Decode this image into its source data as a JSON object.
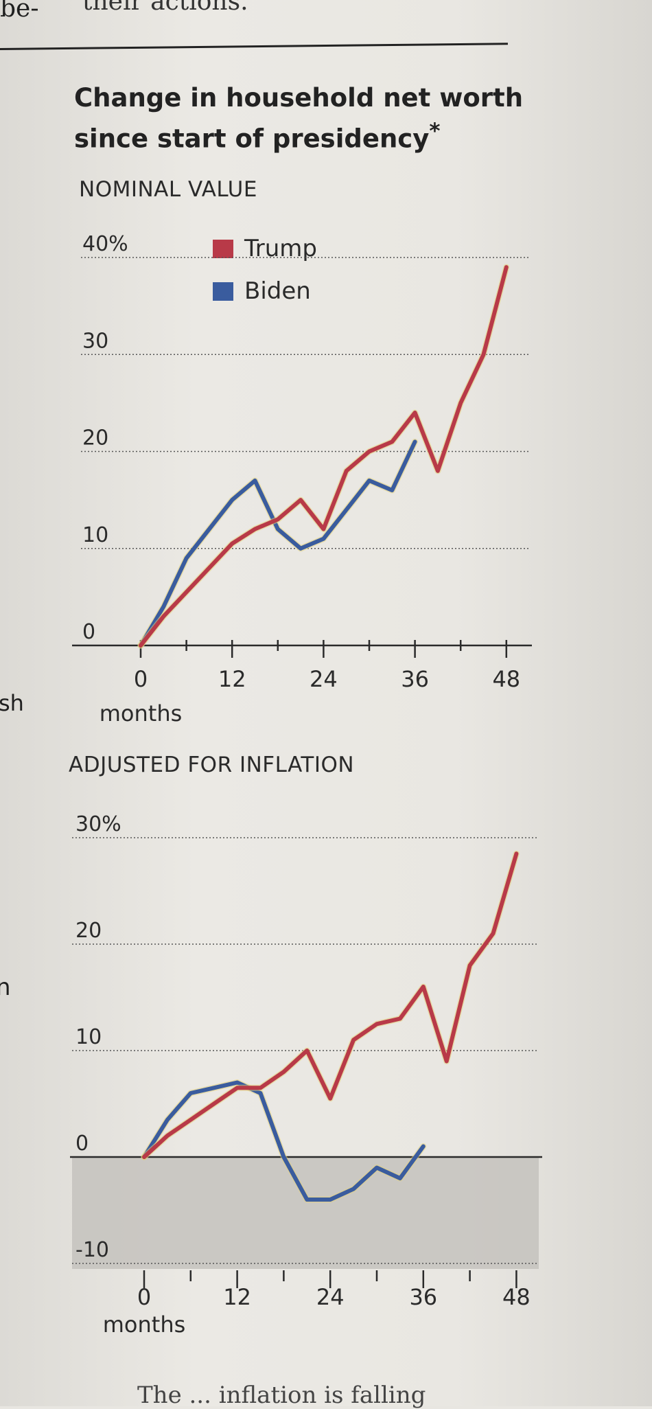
{
  "fragments": {
    "top_left": "be-",
    "top_mid": "their actions.",
    "side_1": "sh",
    "side_2": "n",
    "bottom": "The ... inflation is falling"
  },
  "title": "Change in household net worth since start of presidency",
  "title_mark": "*",
  "colors": {
    "trump": "#b83a48",
    "biden": "#3a5c9e",
    "grid": "#555555",
    "negative_fill": "#c4c2bd"
  },
  "chart_data": [
    {
      "type": "line",
      "title": "NOMINAL VALUE",
      "xlabel": "months",
      "x_ticks": [
        0,
        12,
        24,
        36,
        48
      ],
      "x_tick_labels": [
        "0",
        "12",
        "24",
        "36",
        "48"
      ],
      "y_ticks": [
        0,
        10,
        20,
        30,
        40
      ],
      "y_tick_labels": [
        "0",
        "10",
        "20",
        "30",
        "40%"
      ],
      "xlim": [
        0,
        50
      ],
      "ylim": [
        0,
        40
      ],
      "legend": "top-center",
      "series": [
        {
          "name": "Trump",
          "x": [
            0,
            3,
            6,
            9,
            12,
            15,
            18,
            21,
            24,
            27,
            30,
            33,
            36,
            39,
            42,
            45,
            48
          ],
          "y": [
            0,
            3,
            5.5,
            8,
            10.5,
            12,
            13,
            15,
            12,
            18,
            20,
            21,
            24,
            18,
            25,
            30,
            39
          ]
        },
        {
          "name": "Biden",
          "x": [
            0,
            3,
            6,
            9,
            12,
            15,
            18,
            21,
            24,
            27,
            30,
            33,
            36
          ],
          "y": [
            0,
            4,
            9,
            12,
            15,
            17,
            12,
            10,
            11,
            14,
            17,
            16,
            21
          ]
        }
      ]
    },
    {
      "type": "line",
      "title": "ADJUSTED FOR INFLATION",
      "xlabel": "months",
      "x_ticks": [
        0,
        12,
        24,
        36,
        48
      ],
      "x_tick_labels": [
        "0",
        "12",
        "24",
        "36",
        "48"
      ],
      "y_ticks": [
        -10,
        0,
        10,
        20,
        30
      ],
      "y_tick_labels": [
        "-10",
        "0",
        "10",
        "20",
        "30%"
      ],
      "xlim": [
        0,
        50
      ],
      "ylim": [
        -10,
        30
      ],
      "series": [
        {
          "name": "Trump",
          "x": [
            0,
            3,
            6,
            9,
            12,
            15,
            18,
            21,
            24,
            27,
            30,
            33,
            36,
            39,
            42,
            45,
            48
          ],
          "y": [
            0,
            2,
            3.5,
            5,
            6.5,
            6.5,
            8,
            10,
            5.5,
            11,
            12.5,
            13,
            16,
            9,
            18,
            21,
            28.5
          ]
        },
        {
          "name": "Biden",
          "x": [
            0,
            3,
            6,
            9,
            12,
            15,
            18,
            21,
            24,
            27,
            30,
            33,
            36
          ],
          "y": [
            0,
            3.5,
            6,
            6.5,
            7,
            6,
            0,
            -4,
            -4,
            -3,
            -1,
            -2,
            1
          ]
        }
      ]
    }
  ]
}
